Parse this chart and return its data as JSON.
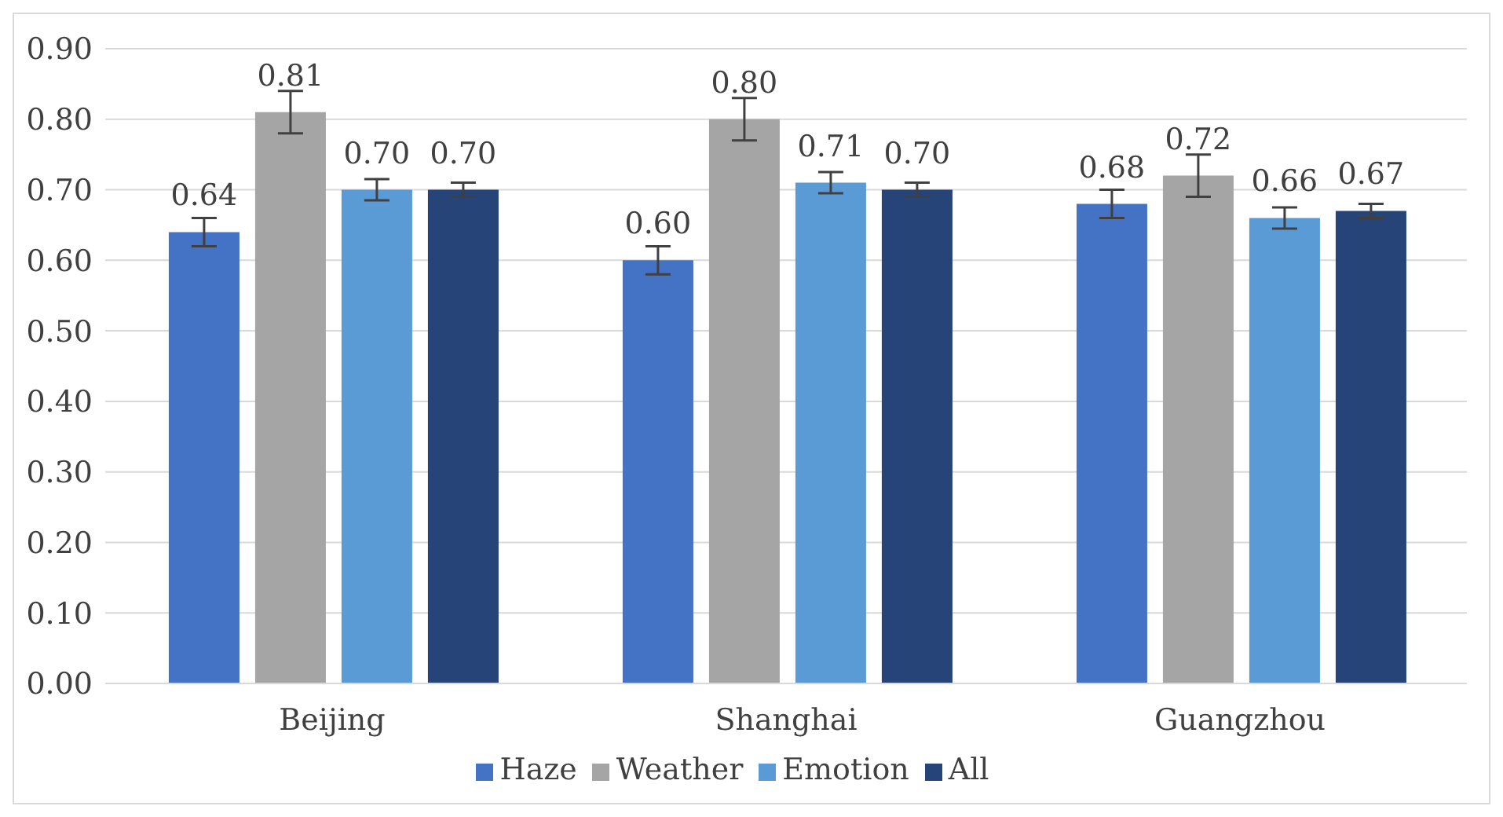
{
  "chart_data": {
    "type": "bar",
    "categories": [
      "Beijing",
      "Shanghai",
      "Guangzhou"
    ],
    "series": [
      {
        "name": "Haze",
        "color": "#4472c4",
        "values": [
          0.64,
          0.6,
          0.68
        ],
        "value_labels": [
          "0.64",
          "0.60",
          "0.68"
        ],
        "errors": [
          0.02,
          0.02,
          0.02
        ]
      },
      {
        "name": "Weather",
        "color": "#a5a5a5",
        "values": [
          0.81,
          0.8,
          0.72
        ],
        "value_labels": [
          "0.81",
          "0.80",
          "0.72"
        ],
        "errors": [
          0.03,
          0.03,
          0.03
        ]
      },
      {
        "name": "Emotion",
        "color": "#5b9bd5",
        "values": [
          0.7,
          0.71,
          0.66
        ],
        "value_labels": [
          "0.70",
          "0.71",
          "0.66"
        ],
        "errors": [
          0.015,
          0.015,
          0.015
        ]
      },
      {
        "name": "All",
        "color": "#264478",
        "values": [
          0.7,
          0.7,
          0.67
        ],
        "value_labels": [
          "0.70",
          "0.70",
          "0.67"
        ],
        "errors": [
          0.01,
          0.01,
          0.01
        ]
      }
    ],
    "ylim": [
      0,
      0.9
    ],
    "yticks": [
      {
        "value": 0,
        "label": "0.00"
      },
      {
        "value": 0.1,
        "label": "0.10"
      },
      {
        "value": 0.2,
        "label": "0.20"
      },
      {
        "value": 0.3,
        "label": "0.30"
      },
      {
        "value": 0.4,
        "label": "0.40"
      },
      {
        "value": 0.5,
        "label": "0.50"
      },
      {
        "value": 0.6,
        "label": "0.60"
      },
      {
        "value": 0.7,
        "label": "0.70"
      },
      {
        "value": 0.8,
        "label": "0.80"
      },
      {
        "value": 0.9,
        "label": "0.90"
      }
    ],
    "grid": "y",
    "legend": "bottom"
  }
}
